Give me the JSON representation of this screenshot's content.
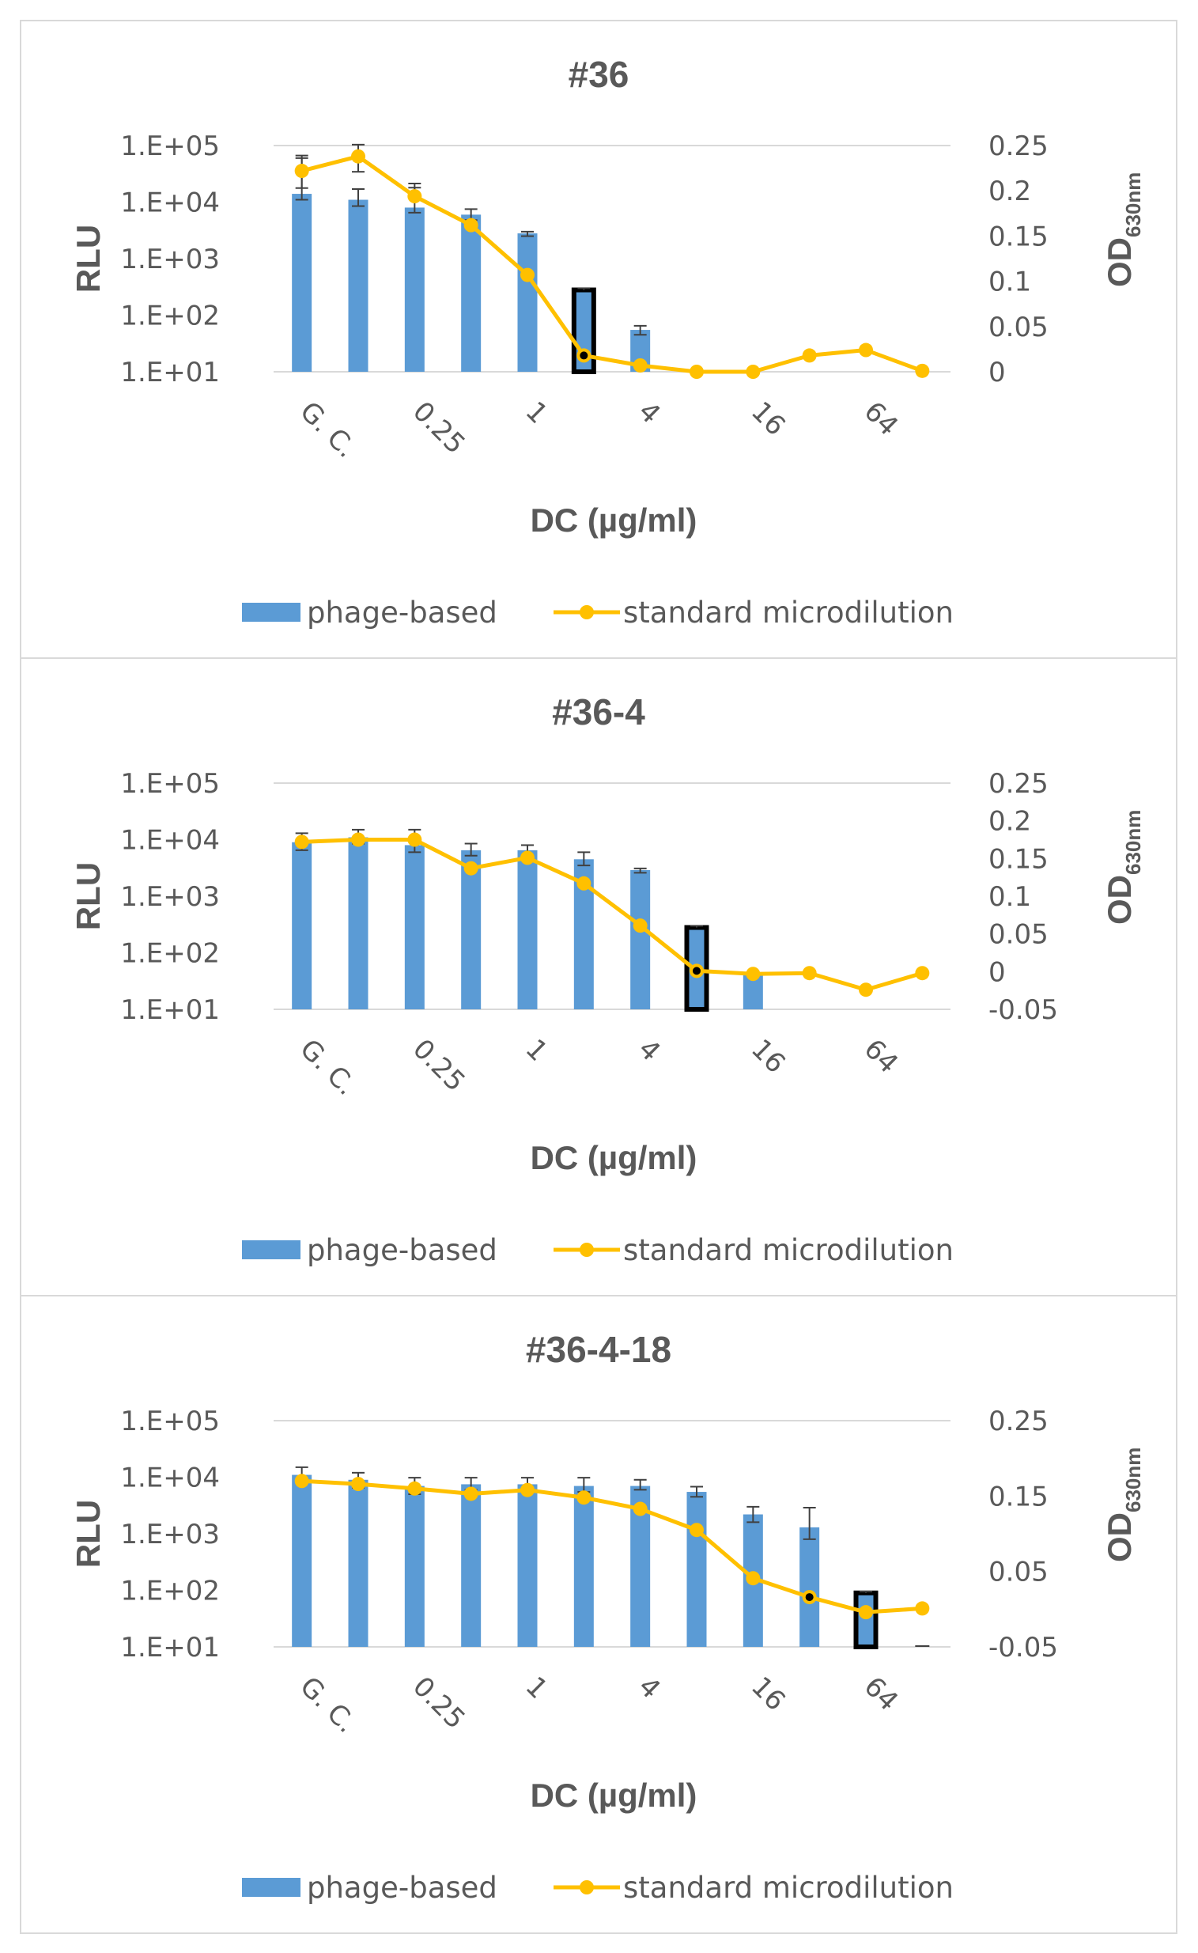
{
  "figure": {
    "colors": {
      "bar": "#5b9bd5",
      "line": "#ffc000",
      "highlight_outline": "#000000",
      "text": "#595959",
      "grid": "#d9d9d9",
      "error_bar": "#404040"
    },
    "x_tick_labels": [
      "G. C.",
      "0.25",
      "1",
      "4",
      "16",
      "64"
    ]
  },
  "chart_data": [
    {
      "type": "bar",
      "title": "#36",
      "xlabel": "DC (µg/ml)",
      "ylabel": "RLU",
      "y2label_main": "OD",
      "y2label_sub": "630nm",
      "categories": [
        "G. C.",
        "",
        "0.25",
        "",
        "1",
        "",
        "4",
        "",
        "16",
        "",
        "64",
        ""
      ],
      "ylim_log": [
        1,
        5
      ],
      "y_ticks": [
        "1.E+01",
        "1.E+02",
        "1.E+03",
        "1.E+04",
        "1.E+05"
      ],
      "y2lim": [
        0,
        0.25
      ],
      "y2_ticks": [
        "0",
        "0.05",
        "0.1",
        "0.15",
        "0.2",
        "0.25"
      ],
      "highlight_index": 5,
      "legend": [
        "phage-based",
        "standard microdilution"
      ],
      "series": [
        {
          "name": "phage-based",
          "kind": "bar",
          "axis": "left",
          "values": [
            14000,
            11000,
            8000,
            6000,
            2800,
            280,
            55,
            10,
            10,
            10,
            10,
            10
          ],
          "errors_up": [
            60000,
            17000,
            18000,
            7500,
            3000,
            300,
            65,
            null,
            null,
            null,
            null,
            null
          ],
          "errors_down": [
            11000,
            8500,
            6500,
            4800,
            2500,
            null,
            45,
            null,
            null,
            null,
            null,
            null
          ]
        },
        {
          "name": "standard microdilution",
          "kind": "line",
          "axis": "right",
          "values": [
            0.222,
            0.238,
            0.194,
            0.162,
            0.107,
            0.018,
            0.007,
            0.0,
            0.0,
            0.018,
            0.024,
            0.001
          ],
          "errors_up": [
            0.239,
            0.251,
            0.208,
            null,
            null,
            null,
            null,
            null,
            null,
            null,
            null,
            null
          ],
          "errors_down": [
            0.203,
            0.221,
            null,
            null,
            null,
            null,
            null,
            null,
            null,
            null,
            null,
            null
          ],
          "highlight_index": 5
        }
      ]
    },
    {
      "type": "bar",
      "title": "#36-4",
      "xlabel": "DC (µg/ml)",
      "ylabel": "RLU",
      "y2label_main": "OD",
      "y2label_sub": "630nm",
      "categories": [
        "G. C.",
        "",
        "0.25",
        "",
        "1",
        "",
        "4",
        "",
        "16",
        "",
        "64",
        ""
      ],
      "ylim_log": [
        1,
        5
      ],
      "y_ticks": [
        "1.E+01",
        "1.E+02",
        "1.E+03",
        "1.E+04",
        "1.E+05"
      ],
      "y2lim": [
        -0.05,
        0.25
      ],
      "y2_ticks": [
        "-0.05",
        "0",
        "0.05",
        "0.1",
        "0.15",
        "0.2",
        "0.25"
      ],
      "highlight_index": 7,
      "legend": [
        "phage-based",
        "standard microdilution"
      ],
      "series": [
        {
          "name": "phage-based",
          "kind": "bar",
          "axis": "left",
          "values": [
            9000,
            11000,
            8000,
            6500,
            6500,
            4500,
            2900,
            280,
            40,
            10,
            10,
            10
          ],
          "errors_up": [
            13000,
            15000,
            15000,
            8500,
            8000,
            6000,
            3100,
            300,
            null,
            null,
            null,
            null
          ],
          "errors_down": [
            6500,
            8500,
            6000,
            5200,
            5200,
            3500,
            2600,
            null,
            null,
            null,
            null,
            null
          ]
        },
        {
          "name": "standard microdilution",
          "kind": "line",
          "axis": "right",
          "values": [
            0.172,
            0.175,
            0.175,
            0.137,
            0.151,
            0.117,
            0.061,
            0.001,
            -0.003,
            -0.002,
            -0.024,
            -0.002
          ],
          "errors_up": [
            null,
            null,
            null,
            null,
            null,
            null,
            null,
            null,
            null,
            null,
            null,
            null
          ],
          "errors_down": [
            null,
            null,
            null,
            null,
            null,
            null,
            null,
            null,
            null,
            null,
            null,
            null
          ],
          "highlight_index": 7
        }
      ]
    },
    {
      "type": "bar",
      "title": "#36-4-18",
      "xlabel": "DC (µg/ml)",
      "ylabel": "RLU",
      "y2label_main": "OD",
      "y2label_sub": "630nm",
      "categories": [
        "G. C.",
        "",
        "0.25",
        "",
        "1",
        "",
        "4",
        "",
        "16",
        "",
        "64",
        ""
      ],
      "ylim_log": [
        1,
        5
      ],
      "y_ticks": [
        "1.E+01",
        "1.E+02",
        "1.E+03",
        "1.E+04",
        "1.E+05"
      ],
      "y2lim": [
        -0.05,
        0.25
      ],
      "y2_ticks": [
        "-0.05",
        "0.05",
        "0.15",
        "0.25"
      ],
      "highlight_index": 10,
      "legend": [
        "phage-based",
        "standard microdilution"
      ],
      "series": [
        {
          "name": "phage-based",
          "kind": "bar",
          "axis": "left",
          "values": [
            11000,
            9000,
            7000,
            7500,
            7500,
            7000,
            7000,
            5500,
            2200,
            1300,
            90,
            10
          ],
          "errors_up": [
            15000,
            12000,
            9800,
            9800,
            9800,
            9800,
            9000,
            6800,
            3000,
            2900,
            95,
            null
          ],
          "errors_down": [
            8000,
            6500,
            5000,
            6000,
            6000,
            5500,
            6000,
            4500,
            1600,
            800,
            null,
            null
          ]
        },
        {
          "name": "standard microdilution",
          "kind": "line",
          "axis": "right",
          "values": [
            0.17,
            0.166,
            0.16,
            0.153,
            0.158,
            0.148,
            0.133,
            0.105,
            0.041,
            0.016,
            -0.004,
            0.001
          ],
          "errors_up": [
            null,
            null,
            null,
            null,
            null,
            null,
            null,
            null,
            null,
            null,
            null,
            null
          ],
          "errors_down": [
            null,
            null,
            null,
            null,
            null,
            null,
            null,
            null,
            null,
            null,
            null,
            null
          ],
          "highlight_index": 9
        }
      ]
    }
  ]
}
